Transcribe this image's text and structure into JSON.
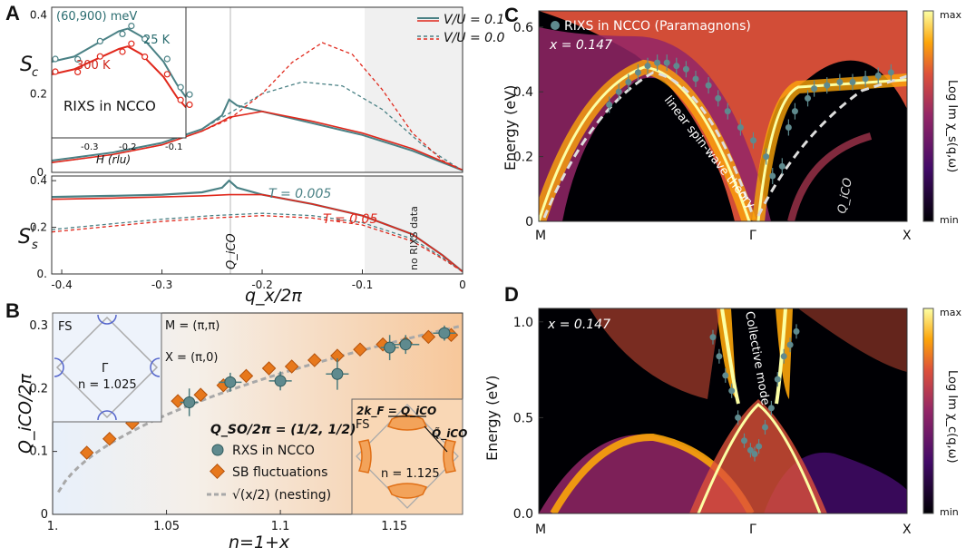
{
  "colors": {
    "teal": "#4a8185",
    "red": "#e0281c",
    "orange": "#e7781c",
    "ax": "#333333",
    "gray": "#bdbdbd"
  },
  "panels": {
    "A": "A",
    "B": "B",
    "C": "C",
    "D": "D"
  },
  "chart_data": [
    {
      "id": "A-top",
      "type": "line",
      "ylabel": "S_c",
      "yticks": [
        "0.",
        "0.2",
        "0.4"
      ],
      "ylim": [
        0,
        0.42
      ],
      "xlim": [
        -0.41,
        0
      ],
      "legend": [
        {
          "name": "V/U = 0.1",
          "style": "solid"
        },
        {
          "name": "V/U = 0.0",
          "style": "dashed"
        }
      ],
      "series": [
        {
          "name": "V/U = 0.1, teal",
          "x": [
            -0.41,
            -0.35,
            -0.3,
            -0.26,
            -0.24,
            -0.233,
            -0.225,
            -0.2,
            -0.15,
            -0.1,
            -0.05,
            -0.02,
            0
          ],
          "y": [
            0.03,
            0.05,
            0.075,
            0.11,
            0.145,
            0.185,
            0.17,
            0.155,
            0.125,
            0.095,
            0.055,
            0.025,
            0.005
          ]
        },
        {
          "name": "V/U = 0.1, red",
          "x": [
            -0.41,
            -0.35,
            -0.3,
            -0.26,
            -0.24,
            -0.233,
            -0.2,
            -0.15,
            -0.1,
            -0.05,
            -0.02,
            0
          ],
          "y": [
            0.025,
            0.045,
            0.07,
            0.105,
            0.13,
            0.14,
            0.155,
            0.13,
            0.1,
            0.06,
            0.028,
            0.006
          ]
        },
        {
          "name": "V/U = 0.0, teal",
          "x": [
            -0.41,
            -0.35,
            -0.3,
            -0.26,
            -0.233,
            -0.2,
            -0.16,
            -0.12,
            -0.08,
            -0.04,
            -0.01,
            0
          ],
          "y": [
            0.03,
            0.05,
            0.075,
            0.11,
            0.15,
            0.2,
            0.23,
            0.22,
            0.16,
            0.07,
            0.02,
            0.005
          ]
        },
        {
          "name": "V/U = 0.0, red",
          "x": [
            -0.41,
            -0.35,
            -0.3,
            -0.26,
            -0.233,
            -0.2,
            -0.17,
            -0.14,
            -0.11,
            -0.08,
            -0.05,
            -0.02,
            0
          ],
          "y": [
            0.025,
            0.045,
            0.07,
            0.105,
            0.135,
            0.2,
            0.28,
            0.33,
            0.3,
            0.21,
            0.1,
            0.03,
            0.006
          ]
        }
      ],
      "shade_from": -0.1,
      "inset": {
        "title": "(60,900) meV",
        "label": "RIXS in NCCO",
        "xlabel": "H (rlu)",
        "xticks": [
          "-0.3",
          "-0.2",
          "-0.1"
        ],
        "xlim": [
          -0.4,
          -0.1
        ],
        "series": [
          {
            "name": "25 K",
            "x": [
              -0.4,
              -0.35,
              -0.3,
              -0.25,
              -0.23,
              -0.2,
              -0.15,
              -0.12,
              -0.1
            ],
            "y": [
              0.6,
              0.64,
              0.74,
              0.84,
              0.86,
              0.8,
              0.6,
              0.42,
              0.32
            ]
          },
          {
            "name": "300 K",
            "x": [
              -0.4,
              -0.35,
              -0.3,
              -0.25,
              -0.23,
              -0.2,
              -0.15,
              -0.12,
              -0.1
            ],
            "y": [
              0.5,
              0.54,
              0.62,
              0.7,
              0.72,
              0.66,
              0.48,
              0.32,
              0.24
            ]
          }
        ]
      }
    },
    {
      "id": "A-bottom",
      "type": "line",
      "ylabel": "S_s^l",
      "yticks": [
        "0.",
        "0.2",
        "0.4"
      ],
      "ylim": [
        0,
        0.42
      ],
      "xticks": [
        "-0.4",
        "-0.3",
        "-0.2",
        "-0.1",
        "0"
      ],
      "xlim": [
        -0.41,
        0
      ],
      "xlabel": "q_x/2π",
      "annotations": {
        "t1": "T = 0.005",
        "t2": "T = 0.05",
        "nodata": "no RIXS data",
        "qico": "Q_iCO"
      },
      "series": [
        {
          "name": "T=0.005 solid",
          "x": [
            -0.41,
            -0.35,
            -0.3,
            -0.26,
            -0.24,
            -0.233,
            -0.225,
            -0.2,
            -0.15,
            -0.1,
            -0.05,
            -0.02,
            0
          ],
          "y": [
            0.33,
            0.335,
            0.34,
            0.35,
            0.37,
            0.4,
            0.37,
            0.34,
            0.3,
            0.25,
            0.17,
            0.08,
            0.01
          ]
        },
        {
          "name": "T=0.05 solid",
          "x": [
            -0.41,
            -0.35,
            -0.3,
            -0.26,
            -0.233,
            -0.2,
            -0.15,
            -0.1,
            -0.05,
            -0.02,
            0
          ],
          "y": [
            0.32,
            0.325,
            0.33,
            0.335,
            0.34,
            0.34,
            0.3,
            0.25,
            0.17,
            0.08,
            0.01
          ]
        },
        {
          "name": "T=0.005 dashed",
          "x": [
            -0.41,
            -0.35,
            -0.3,
            -0.25,
            -0.2,
            -0.15,
            -0.1,
            -0.05,
            -0.02,
            0
          ],
          "y": [
            0.19,
            0.215,
            0.235,
            0.25,
            0.26,
            0.25,
            0.22,
            0.15,
            0.07,
            0.01
          ]
        },
        {
          "name": "T=0.05 dashed",
          "x": [
            -0.41,
            -0.35,
            -0.3,
            -0.25,
            -0.2,
            -0.15,
            -0.1,
            -0.05,
            -0.02,
            0
          ],
          "y": [
            0.18,
            0.205,
            0.225,
            0.24,
            0.25,
            0.24,
            0.21,
            0.14,
            0.065,
            0.01
          ]
        }
      ]
    },
    {
      "id": "B",
      "type": "scatter",
      "xlabel": "n=1+x",
      "ylabel": "Q_iCO/2π",
      "xlim": [
        1.0,
        1.18
      ],
      "ylim": [
        0,
        0.32
      ],
      "xticks": [
        "1.",
        "1.05",
        "1.1",
        "1.15"
      ],
      "xtick_values": [
        1.0,
        1.05,
        1.1,
        1.15
      ],
      "yticks": [
        "0",
        "0.1",
        "0.2",
        "0.3"
      ],
      "legend": [
        "Q_SO/2π = (1/2, 1/2)",
        "RXS in NCCO",
        "SB fluctuations",
        "√(x/2) (nesting)"
      ],
      "rxs": {
        "x": [
          1.06,
          1.078,
          1.1,
          1.125,
          1.148,
          1.155,
          1.172
        ],
        "y": [
          0.178,
          0.21,
          0.212,
          0.223,
          0.265,
          0.27,
          0.288
        ],
        "xerr": [
          0.004,
          0.005,
          0.005,
          0.005,
          0.004,
          0.006,
          0.005
        ],
        "yerr": [
          0.022,
          0.015,
          0.015,
          0.025,
          0.02,
          0.015,
          0.012
        ]
      },
      "sb": {
        "x": [
          1.015,
          1.025,
          1.035,
          1.045,
          1.055,
          1.065,
          1.075,
          1.085,
          1.095,
          1.105,
          1.115,
          1.125,
          1.135,
          1.145,
          1.155,
          1.165,
          1.175
        ],
        "y": [
          0.098,
          0.12,
          0.145,
          0.16,
          0.18,
          0.19,
          0.205,
          0.22,
          0.232,
          0.235,
          0.245,
          0.252,
          0.262,
          0.27,
          0.272,
          0.282,
          0.285
        ]
      },
      "inset_left": {
        "fs": "FS",
        "gamma": "Γ",
        "n": "n = 1.025",
        "m": "M = (π,π)",
        "x": "X = (π,0)"
      },
      "inset_right": {
        "fs": "FS",
        "kf": "2k_F = Q_iCO",
        "qtilde": "Q̃_iCO",
        "n": "n = 1.125"
      }
    },
    {
      "id": "C",
      "type": "heatmap",
      "ylabel": "Energy (eV)",
      "yticks": [
        "0",
        "0.2",
        "0.4",
        "0.6"
      ],
      "ylim": [
        0,
        0.65
      ],
      "xticks": [
        "M",
        "Γ",
        "X"
      ],
      "colorbar": [
        "max",
        "min"
      ],
      "cbar_label": "Log Im χ_s(q,ω)",
      "labels": {
        "legend": "RIXS in NCCO (Paramagnons)",
        "doping": "x = 0.147",
        "lsw": "linear spin-wave theory",
        "qico": "Q_iCO"
      },
      "points": {
        "x": [
          0.22,
          0.25,
          0.28,
          0.31,
          0.34,
          0.37,
          0.4,
          0.43,
          0.46,
          0.49,
          0.53,
          0.56,
          0.59,
          0.63,
          0.67,
          0.71,
          0.73,
          0.76,
          0.78,
          0.8,
          0.84,
          0.86,
          0.9,
          0.94,
          0.98,
          1.02,
          1.06,
          1.1
        ],
        "y": [
          0.36,
          0.4,
          0.43,
          0.46,
          0.48,
          0.49,
          0.49,
          0.48,
          0.47,
          0.44,
          0.42,
          0.38,
          0.34,
          0.29,
          0.25,
          0.2,
          0.14,
          0.17,
          0.29,
          0.34,
          0.38,
          0.41,
          0.42,
          0.43,
          0.43,
          0.44,
          0.45,
          0.46
        ]
      }
    },
    {
      "id": "D",
      "type": "heatmap",
      "ylabel": "Energy (eV)",
      "yticks": [
        "0.0",
        "0.5",
        "1.0"
      ],
      "ylim": [
        0,
        1.07
      ],
      "xticks": [
        "M",
        "Γ",
        "X"
      ],
      "colorbar": [
        "max",
        "min"
      ],
      "cbar_label": "Log Im χ_c(q,ω)",
      "labels": {
        "doping": "x = 0.147",
        "collective": "Collective mode"
      },
      "points": {
        "x": [
          -0.2,
          -0.17,
          -0.14,
          -0.11,
          -0.08,
          -0.05,
          -0.02,
          0,
          0.02,
          0.05,
          0.08,
          0.11,
          0.14,
          0.17,
          0.2
        ],
        "y": [
          0.92,
          0.82,
          0.72,
          0.64,
          0.5,
          0.38,
          0.33,
          0.31,
          0.35,
          0.45,
          0.55,
          0.7,
          0.82,
          0.88,
          0.95
        ]
      }
    }
  ]
}
